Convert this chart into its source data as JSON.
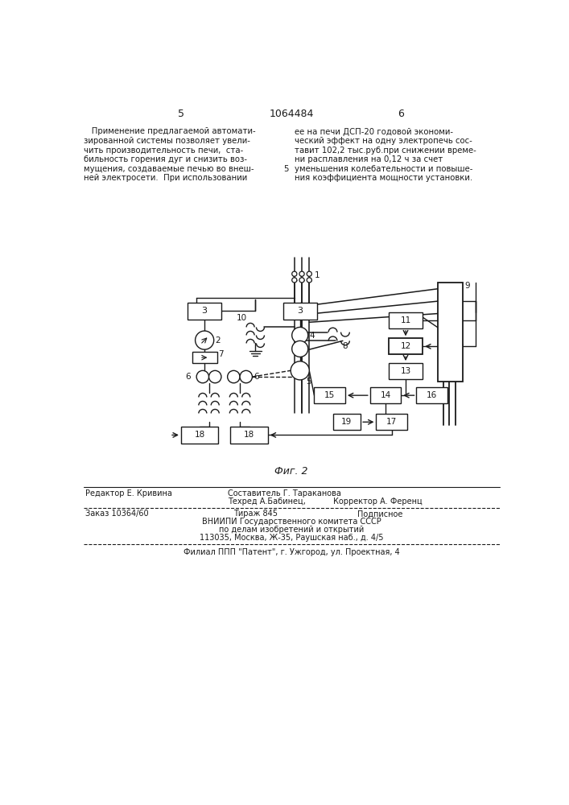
{
  "page_number_left": "5",
  "patent_number": "1064484",
  "page_number_right": "6",
  "left_text": [
    "   Применение предлагаемой автомати-",
    "зированной системы позволяет увели-",
    "чить производительность печи,  ста-",
    "бильность горения дуг и снизить воз-",
    "мущения, создаваемые печью во внеш-",
    "ней электросети.  При использовании"
  ],
  "right_text": [
    "ее на печи ДСП-20 годовой экономи-",
    "ческий эффект на одну электропечь сос-",
    "тавит 102,2 тыс.руб.при снижении време-",
    "ни расплавления на 0,12 ч за счет",
    "уменьшения колебательности и повыше-",
    "ния коэффициента мощности установки."
  ],
  "right_text_number": "5",
  "fig_label": "Фиг. 2",
  "editor_line": "Редактор Е. Кривина",
  "composer_line": "Составитель Г. Тараканова",
  "techred_line": "Техред А.Бабинец,",
  "corrector_line": "Корректор А. Ференц",
  "order_line": "Заказ 10364/60",
  "tirazh_line": "Тираж 845",
  "podpisnoe_line": "Подписное",
  "vniip_line": "ВНИИПИ Государственного комитета СССР",
  "vniip_line2": "по делам изобретений и открытий",
  "vniip_line3": "113035, Москва, Ж-35, Раушская наб., д. 4/5",
  "filial_line": "Филиал ППП \"Патент\", г. Ужгород, ул. Проектная, 4",
  "bg_color": "#ffffff",
  "line_color": "#1a1a1a",
  "text_color": "#1a1a1a"
}
